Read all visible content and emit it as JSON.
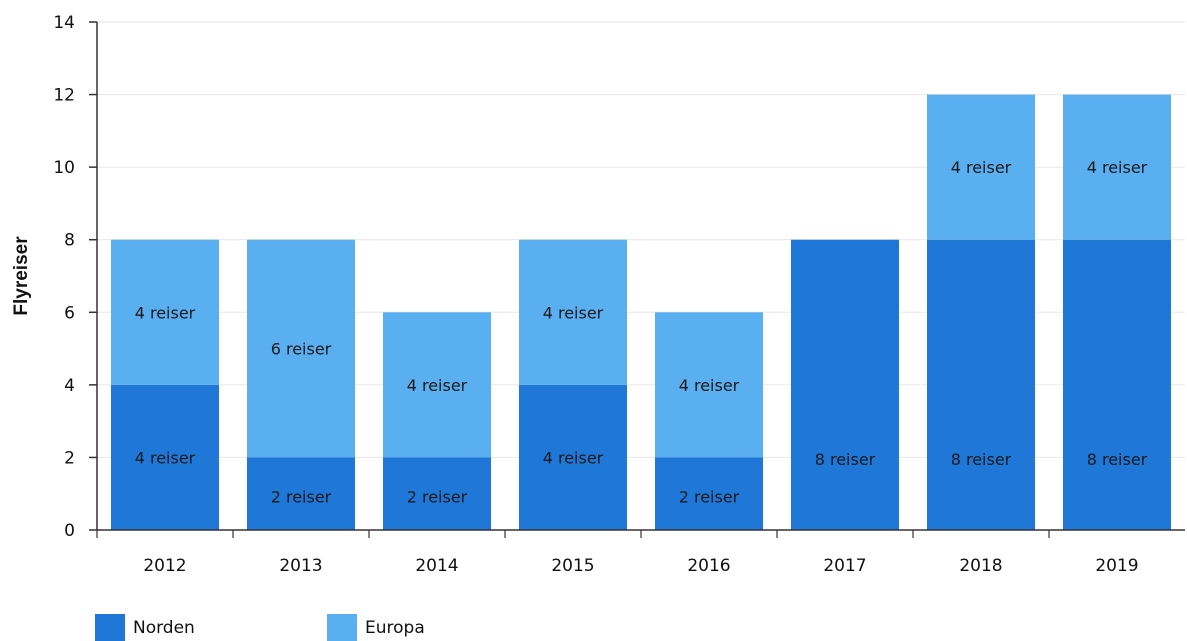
{
  "chart_data": {
    "type": "bar",
    "stacked": true,
    "title": "",
    "xlabel": "",
    "ylabel": "Flyreiser",
    "ylim": [
      0,
      14
    ],
    "yticks": [
      0,
      2,
      4,
      6,
      8,
      10,
      12,
      14
    ],
    "categories": [
      "2012",
      "2013",
      "2014",
      "2015",
      "2016",
      "2017",
      "2018",
      "2019"
    ],
    "series": [
      {
        "name": "Norden",
        "color": "#1f78d8",
        "values": [
          4,
          2,
          2,
          4,
          2,
          8,
          8,
          8
        ],
        "labels": [
          "4 reiser",
          "2 reiser",
          "2 reiser",
          "4 reiser",
          "2 reiser",
          "8 reiser",
          "8 reiser",
          "8 reiser"
        ]
      },
      {
        "name": "Europa",
        "color": "#5aaff0",
        "values": [
          4,
          6,
          4,
          4,
          4,
          0,
          4,
          4
        ],
        "labels": [
          "4 reiser",
          "6 reiser",
          "4 reiser",
          "4 reiser",
          "4 reiser",
          "",
          "4 reiser",
          "4 reiser"
        ]
      }
    ],
    "grid": true,
    "legend_position": "bottom-left"
  }
}
